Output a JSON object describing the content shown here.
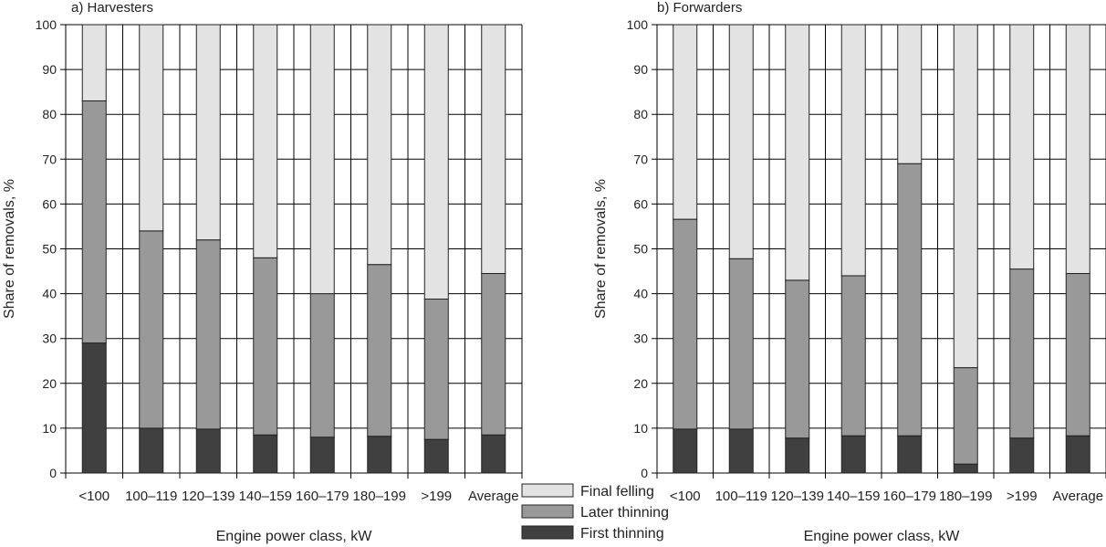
{
  "chart_data": [
    {
      "type": "bar",
      "stacked": true,
      "title": "a) Harvesters",
      "xlabel": "Engine power class, kW",
      "ylabel": "Share of removals, %",
      "ylim": [
        0,
        100
      ],
      "yticks": [
        0,
        10,
        20,
        30,
        40,
        50,
        60,
        70,
        80,
        90,
        100
      ],
      "grid": true,
      "categories": [
        "<100",
        "100–119",
        "120–139",
        "140–159",
        "160–179",
        "180–199",
        ">199",
        "Average"
      ],
      "series": [
        {
          "name": "First thinning",
          "values": [
            29,
            10,
            9.8,
            8.5,
            8,
            8.2,
            7.5,
            8.5
          ]
        },
        {
          "name": "Later thinning",
          "values": [
            54,
            44,
            42.2,
            39.5,
            32,
            38.3,
            31.3,
            36
          ]
        },
        {
          "name": "Final felling",
          "values": [
            17,
            46,
            48,
            52,
            60,
            53.5,
            61.2,
            55.5
          ]
        }
      ]
    },
    {
      "type": "bar",
      "stacked": true,
      "title": "b) Forwarders",
      "xlabel": "Engine power class, kW",
      "ylabel": "Share of removals, %",
      "ylim": [
        0,
        100
      ],
      "yticks": [
        0,
        10,
        20,
        30,
        40,
        50,
        60,
        70,
        80,
        90,
        100
      ],
      "grid": true,
      "categories": [
        "<100",
        "100–119",
        "120–139",
        "140–159",
        "160–179",
        "180–199",
        ">199",
        "Average"
      ],
      "series": [
        {
          "name": "First thinning",
          "values": [
            9.8,
            9.8,
            7.8,
            8.3,
            8.3,
            2,
            7.8,
            8.3
          ]
        },
        {
          "name": "Later thinning",
          "values": [
            46.8,
            38,
            35.2,
            35.7,
            60.7,
            21.5,
            37.7,
            36.2
          ]
        },
        {
          "name": "Final felling",
          "values": [
            43.4,
            52.2,
            57,
            56,
            31,
            76.5,
            54.5,
            55.5
          ]
        }
      ]
    }
  ],
  "legend": {
    "position": "bottom-center",
    "items": [
      {
        "label": "Final felling",
        "color": "#e3e3e3"
      },
      {
        "label": "Later thinning",
        "color": "#999999"
      },
      {
        "label": "First thinning",
        "color": "#404040"
      }
    ]
  },
  "colors": {
    "first_thinning": "#404040",
    "later_thinning": "#999999",
    "final_felling": "#e3e3e3",
    "outline": "#222222",
    "grid": "#000000"
  }
}
